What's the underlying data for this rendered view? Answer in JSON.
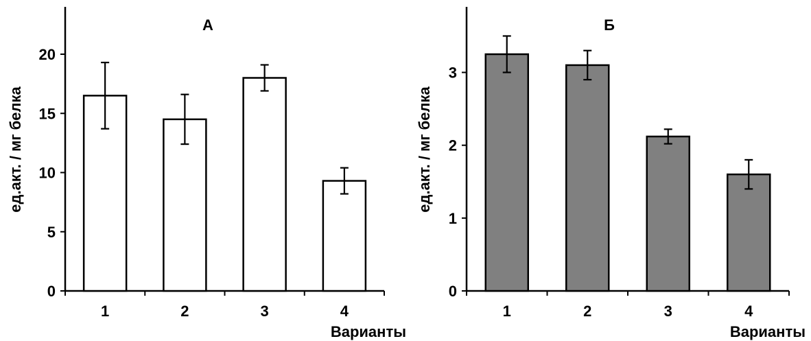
{
  "chart_data": [
    {
      "type": "bar",
      "panel_label": "А",
      "categories": [
        "1",
        "2",
        "3",
        "4"
      ],
      "values": [
        16.5,
        14.5,
        18.0,
        9.3
      ],
      "errors": [
        2.8,
        2.1,
        1.1,
        1.1
      ],
      "ylabel": "ед.акт. / мг белка",
      "xlabel": "Варианты",
      "ylim": [
        0,
        24
      ],
      "yticks": [
        0,
        5,
        10,
        15,
        20
      ],
      "bar_color": "#ffffff",
      "grid": false
    },
    {
      "type": "bar",
      "panel_label": "Б",
      "categories": [
        "1",
        "2",
        "3",
        "4"
      ],
      "values": [
        3.25,
        3.1,
        2.12,
        1.6
      ],
      "errors": [
        0.25,
        0.2,
        0.1,
        0.2
      ],
      "ylabel": "ед.акт. / мг белка",
      "xlabel": "Варианты",
      "ylim": [
        0,
        3.9
      ],
      "yticks": [
        0,
        1,
        2,
        3
      ],
      "bar_color": "#808080",
      "grid": false
    }
  ]
}
